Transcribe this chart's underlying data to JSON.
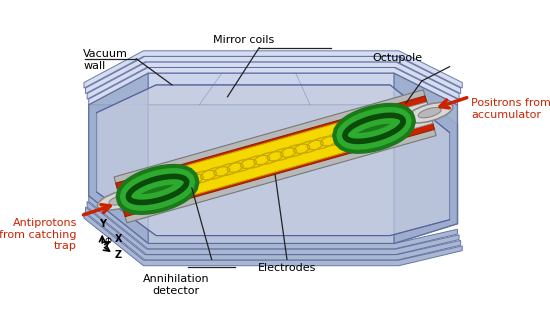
{
  "background_color": "#ffffff",
  "labels": {
    "vacuum_wall": "Vacuum\nwall",
    "mirror_coils": "Mirror coils",
    "octupole": "Octupole",
    "antiprotons": "Antiprotons\nfrom catching\ntrap",
    "positrons": "Positrons from\naccumulator",
    "annihilation": "Annihilation\ndetector",
    "electrodes": "Electrodes"
  },
  "colors": {
    "blue_vessel": "#b0bcd8",
    "blue_mid": "#9aabcc",
    "blue_dark": "#7a8db8",
    "blue_inner": "#c5ccdf",
    "blue_top": "#d0d8ee",
    "red": "#cc2200",
    "red_dark": "#882200",
    "red_label": "#cc2200",
    "green": "#1a7a1a",
    "green_light": "#2eaa2e",
    "green_dark": "#0a4a0a",
    "yellow": "#f5d800",
    "yellow_dark": "#c8a800",
    "gray": "#b8b8b8",
    "gray_light": "#d8d8d8",
    "gray_dark": "#888888",
    "white": "#ffffff",
    "black": "#000000"
  },
  "figsize": [
    5.5,
    3.3
  ],
  "dpi": 100
}
